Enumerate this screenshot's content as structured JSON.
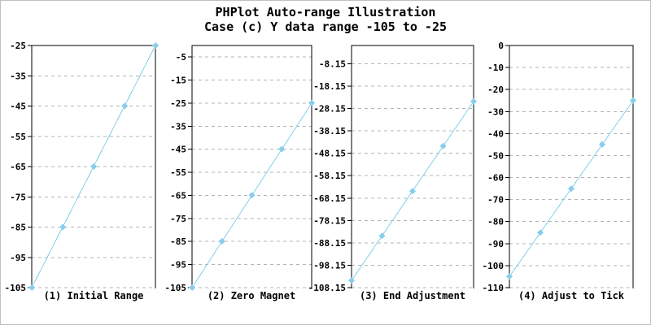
{
  "title": "PHPlot Auto-range Illustration",
  "subtitle": "Case (c) Y data range -105 to -25",
  "colors": {
    "line": "#87CEEB",
    "marker": "#87CEEB",
    "grid": "#B4B4B4",
    "axis": "#000000",
    "text": "#000000",
    "background": "#FFFFFF",
    "image_border": "#C0C0C0"
  },
  "chart_data": [
    {
      "type": "line",
      "caption": "(1) Initial Range",
      "y": [
        -105,
        -85,
        -65,
        -45,
        -25
      ],
      "ylim": [
        -105,
        -25
      ],
      "ytick_labels": [
        "-25",
        "-35",
        "-45",
        "-55",
        "-65",
        "-75",
        "-85",
        "-95",
        "-105"
      ],
      "grid": true,
      "marker": "diamond",
      "legend_position": "none"
    },
    {
      "type": "line",
      "caption": "(2) Zero Magnet",
      "y": [
        -105,
        -85,
        -65,
        -45,
        -25
      ],
      "ylim": [
        -105,
        0
      ],
      "ytick_labels": [
        "-5",
        "-15",
        "-25",
        "-35",
        "-45",
        "-55",
        "-65",
        "-75",
        "-85",
        "-95",
        "-105"
      ],
      "grid": true,
      "marker": "diamond",
      "legend_position": "none"
    },
    {
      "type": "line",
      "caption": "(3) End Adjustment",
      "y": [
        -105,
        -85,
        -65,
        -45,
        -25
      ],
      "ylim": [
        -108.15,
        0
      ],
      "ytick_labels": [
        "-8.15",
        "-18.15",
        "-28.15",
        "-38.15",
        "-48.15",
        "-58.15",
        "-68.15",
        "-78.15",
        "-88.15",
        "-98.15",
        "-108.15"
      ],
      "grid": true,
      "marker": "diamond",
      "legend_position": "none"
    },
    {
      "type": "line",
      "caption": "(4) Adjust to Tick",
      "y": [
        -105,
        -85,
        -65,
        -45,
        -25
      ],
      "ylim": [
        -110,
        0
      ],
      "ytick_labels": [
        "0",
        "-10",
        "-20",
        "-30",
        "-40",
        "-50",
        "-60",
        "-70",
        "-80",
        "-90",
        "-100",
        "-110"
      ],
      "grid": true,
      "marker": "diamond",
      "legend_position": "none"
    }
  ]
}
